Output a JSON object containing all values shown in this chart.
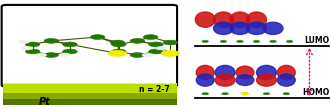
{
  "n_label": "n = 2-7",
  "pt_label": "Pt",
  "lumo_label": "LUMO",
  "homo_label": "HOMO",
  "bg_color": "#ffffff",
  "green_dark": "#227700",
  "yellow_s": "#dddd00",
  "white_h": "#eeeeee",
  "red_orb": "#cc0000",
  "blue_orb": "#1a1acc",
  "arrow_color": "#ee1177",
  "fig_width": 3.31,
  "fig_height": 1.09,
  "dpi": 100
}
